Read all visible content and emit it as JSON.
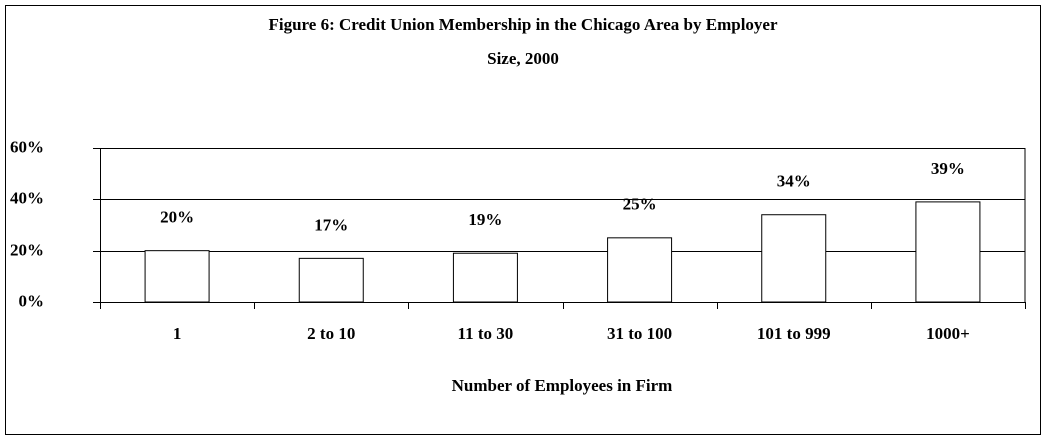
{
  "chart_data": {
    "type": "bar",
    "title": [
      "Figure 6: Credit Union Membership in the Chicago Area by Employer",
      "Size, 2000"
    ],
    "x_label": "Number of Employees in Firm",
    "categories": [
      "1",
      "2 to 10",
      "11 to 30",
      "31 to 100",
      "101 to 999",
      "1000+"
    ],
    "values": [
      20,
      17,
      19,
      25,
      34,
      39
    ],
    "value_labels": [
      "20%",
      "17%",
      "19%",
      "25%",
      "34%",
      "39%"
    ],
    "color": "#ffffff",
    "ylim": [
      0,
      60
    ],
    "yticks": [
      {
        "value": 0,
        "label": "0%"
      },
      {
        "value": 20,
        "label": "20%"
      },
      {
        "value": 40,
        "label": "40%"
      },
      {
        "value": 60,
        "label": "60%"
      }
    ],
    "grid": true
  }
}
